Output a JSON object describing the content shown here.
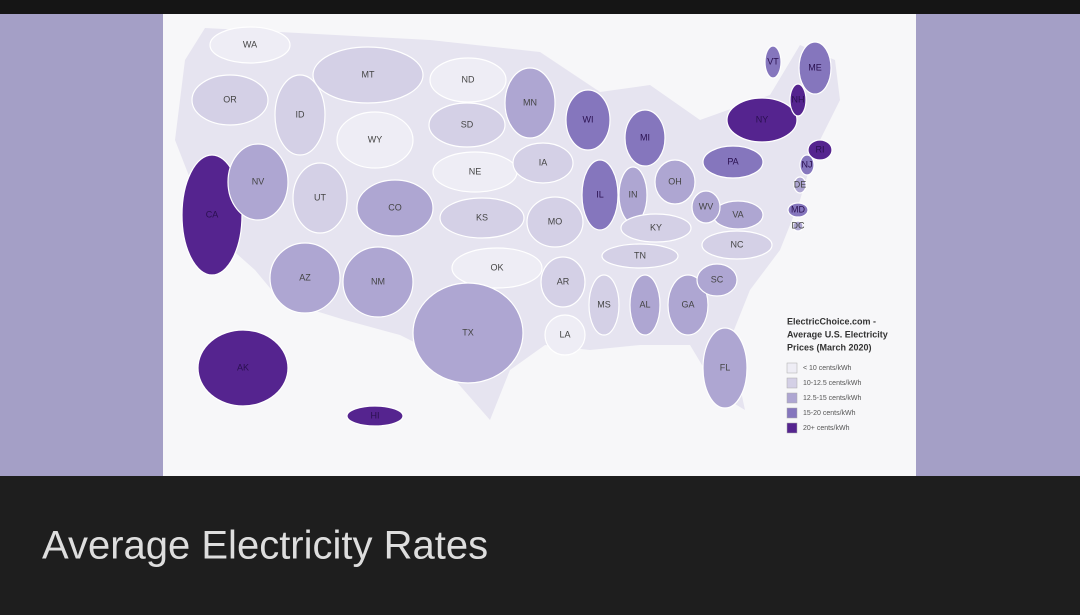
{
  "map": {
    "source_title": [
      "ElectricChoice.com -",
      "Average U.S. Electricity",
      "Prices (March 2020)"
    ],
    "legend": [
      {
        "label": "< 10 cents/kWh",
        "color": "#eeedf5"
      },
      {
        "label": "10-12.5 cents/kWh",
        "color": "#d4d0e6"
      },
      {
        "label": "12.5-15 cents/kWh",
        "color": "#aea6d2"
      },
      {
        "label": "15-20 cents/kWh",
        "color": "#8576bd"
      },
      {
        "label": "20+ cents/kWh",
        "color": "#55248f"
      }
    ],
    "states": [
      {
        "label": "WA",
        "color": "#eeedf5"
      },
      {
        "label": "OR",
        "color": "#d4d0e6"
      },
      {
        "label": "CA",
        "color": "#55248f"
      },
      {
        "label": "NV",
        "color": "#aea6d2"
      },
      {
        "label": "ID",
        "color": "#d4d0e6"
      },
      {
        "label": "MT",
        "color": "#d4d0e6"
      },
      {
        "label": "WY",
        "color": "#eeedf5"
      },
      {
        "label": "UT",
        "color": "#d4d0e6"
      },
      {
        "label": "CO",
        "color": "#aea6d2"
      },
      {
        "label": "AZ",
        "color": "#aea6d2"
      },
      {
        "label": "NM",
        "color": "#aea6d2"
      },
      {
        "label": "ND",
        "color": "#eeedf5"
      },
      {
        "label": "SD",
        "color": "#d4d0e6"
      },
      {
        "label": "NE",
        "color": "#eeedf5"
      },
      {
        "label": "KS",
        "color": "#d4d0e6"
      },
      {
        "label": "OK",
        "color": "#eeedf5"
      },
      {
        "label": "TX",
        "color": "#aea6d2"
      },
      {
        "label": "MN",
        "color": "#aea6d2"
      },
      {
        "label": "IA",
        "color": "#d4d0e6"
      },
      {
        "label": "MO",
        "color": "#d4d0e6"
      },
      {
        "label": "AR",
        "color": "#d4d0e6"
      },
      {
        "label": "LA",
        "color": "#eeedf5"
      },
      {
        "label": "WI",
        "color": "#8576bd"
      },
      {
        "label": "IL",
        "color": "#8576bd"
      },
      {
        "label": "MI",
        "color": "#8576bd"
      },
      {
        "label": "IN",
        "color": "#aea6d2"
      },
      {
        "label": "OH",
        "color": "#aea6d2"
      },
      {
        "label": "KY",
        "color": "#d4d0e6"
      },
      {
        "label": "TN",
        "color": "#d4d0e6"
      },
      {
        "label": "MS",
        "color": "#d4d0e6"
      },
      {
        "label": "AL",
        "color": "#aea6d2"
      },
      {
        "label": "GA",
        "color": "#aea6d2"
      },
      {
        "label": "FL",
        "color": "#aea6d2"
      },
      {
        "label": "SC",
        "color": "#aea6d2"
      },
      {
        "label": "NC",
        "color": "#d4d0e6"
      },
      {
        "label": "VA",
        "color": "#aea6d2"
      },
      {
        "label": "WV",
        "color": "#aea6d2"
      },
      {
        "label": "PA",
        "color": "#8576bd"
      },
      {
        "label": "NY",
        "color": "#55248f"
      },
      {
        "label": "VT",
        "color": "#8576bd"
      },
      {
        "label": "ME",
        "color": "#8576bd"
      },
      {
        "label": "NH",
        "color": "#55248f"
      },
      {
        "label": "RI",
        "color": "#55248f"
      },
      {
        "label": "NJ",
        "color": "#8576bd"
      },
      {
        "label": "DE",
        "color": "#aea6d2"
      },
      {
        "label": "MD",
        "color": "#8576bd"
      },
      {
        "label": "DC",
        "color": "#aea6d2"
      },
      {
        "label": "AK",
        "color": "#55248f"
      },
      {
        "label": "HI",
        "color": "#55248f"
      }
    ]
  },
  "caption": "Average Electricity Rates"
}
